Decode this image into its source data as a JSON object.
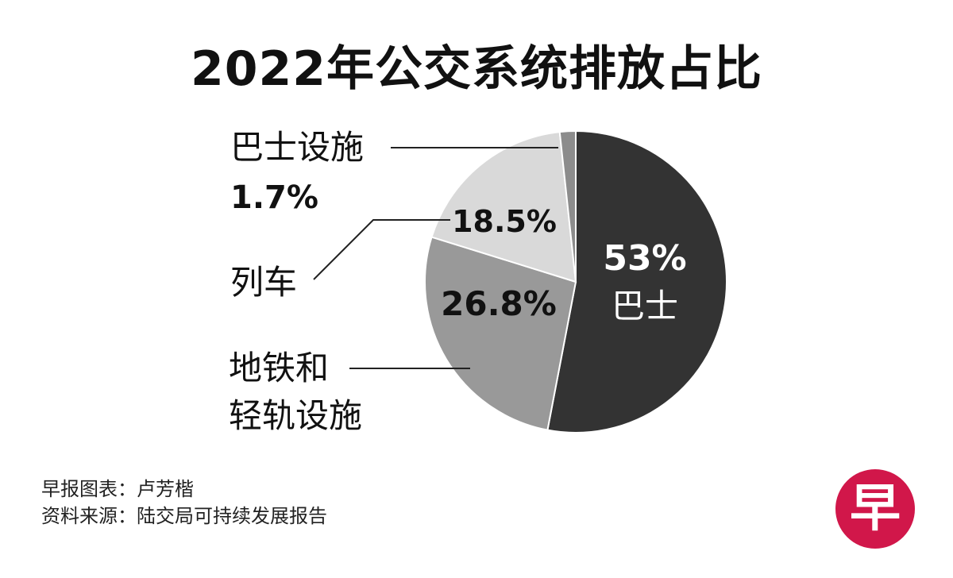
{
  "title": "2022年公交系统排放占比",
  "footer": {
    "credit": "早报图表：卢芳楷",
    "source": "资料来源：陆交局可持续发展报告"
  },
  "logo": {
    "text": "早",
    "color": "#d1174a"
  },
  "chart_data": {
    "type": "pie",
    "title": "2022年公交系统排放占比",
    "slices": [
      {
        "label": "巴士",
        "value": 53.0,
        "label_text": "53%",
        "color": "#333333"
      },
      {
        "label": "地铁和轻轨设施",
        "value": 26.8,
        "label_text": "26.8%",
        "color": "#999999"
      },
      {
        "label": "列车",
        "value": 18.5,
        "label_text": "18.5%",
        "color": "#d9d9d9"
      },
      {
        "label": "巴士设施",
        "value": 1.7,
        "label_text": "1.7%",
        "color": "#8c8c8c"
      }
    ],
    "start_angle_deg": 0,
    "direction": "clockwise"
  }
}
